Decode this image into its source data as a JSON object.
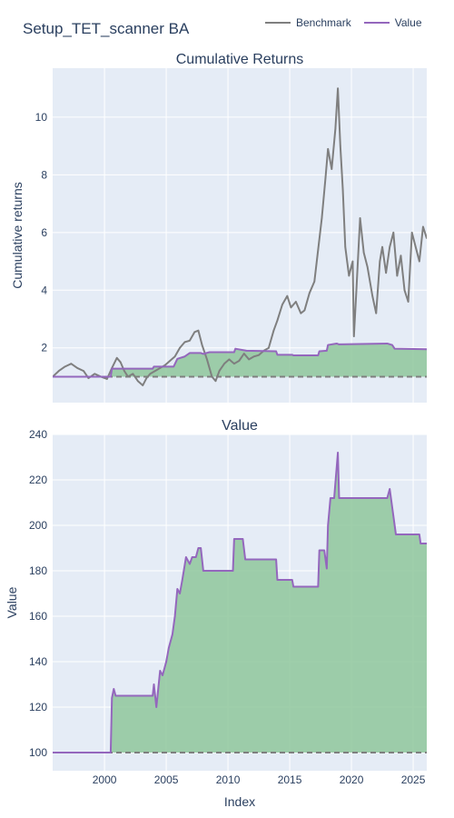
{
  "title": "Setup_TET_scanner BA",
  "colors": {
    "benchmark": "#7f7f7f",
    "value": "#9467bd",
    "fill": "#8fc79b",
    "dark_fill_overlap": "#4a7a4a",
    "baseline": "#7f7f7f",
    "plot_bg": "#e5ecf6"
  },
  "legend": [
    {
      "name": "Benchmark",
      "color": "#7f7f7f"
    },
    {
      "name": "Value",
      "color": "#9467bd"
    }
  ],
  "chart_data": [
    {
      "type": "line",
      "title": "Cumulative Returns",
      "ylabel": "Cumulative returns",
      "xlabel": "",
      "xlim": [
        1995.8,
        2026.1
      ],
      "ylim": [
        0.1,
        11.7
      ],
      "yticks": [
        2,
        4,
        6,
        8,
        10
      ],
      "xticks": [
        2000,
        2005,
        2010,
        2015,
        2020,
        2025
      ],
      "baseline": 1,
      "series": [
        {
          "name": "Benchmark",
          "x": [
            1995.8,
            1996.3,
            1996.8,
            1997.3,
            1997.8,
            1998.3,
            1998.7,
            1999.2,
            1999.7,
            2000.2,
            2000.6,
            2001.0,
            2001.3,
            2001.6,
            2001.9,
            2002.3,
            2002.7,
            2003.1,
            2003.4,
            2003.7,
            2004.1,
            2004.5,
            2004.9,
            2005.3,
            2005.7,
            2006.1,
            2006.5,
            2006.9,
            2007.3,
            2007.6,
            2007.9,
            2008.3,
            2008.7,
            2009.0,
            2009.3,
            2009.7,
            2010.1,
            2010.5,
            2010.9,
            2011.3,
            2011.7,
            2012.1,
            2012.5,
            2012.9,
            2013.3,
            2013.7,
            2014.0,
            2014.4,
            2014.8,
            2015.1,
            2015.5,
            2015.9,
            2016.2,
            2016.6,
            2017.0,
            2017.3,
            2017.6,
            2017.9,
            2018.1,
            2018.4,
            2018.7,
            2018.9,
            2019.1,
            2019.3,
            2019.5,
            2019.8,
            2020.1,
            2020.2,
            2020.4,
            2020.7,
            2021.0,
            2021.3,
            2021.7,
            2022.0,
            2022.3,
            2022.5,
            2022.8,
            2023.1,
            2023.4,
            2023.7,
            2024.0,
            2024.3,
            2024.6,
            2024.9,
            2025.2,
            2025.5,
            2025.8,
            2026.1
          ],
          "values": [
            1.0,
            1.2,
            1.35,
            1.45,
            1.3,
            1.2,
            0.95,
            1.1,
            1.0,
            0.92,
            1.3,
            1.65,
            1.5,
            1.2,
            1.0,
            1.1,
            0.85,
            0.7,
            0.95,
            1.1,
            1.2,
            1.3,
            1.4,
            1.55,
            1.7,
            2.0,
            2.2,
            2.25,
            2.55,
            2.6,
            2.1,
            1.6,
            1.0,
            0.85,
            1.2,
            1.45,
            1.6,
            1.45,
            1.55,
            1.8,
            1.6,
            1.7,
            1.75,
            1.9,
            2.0,
            2.6,
            2.95,
            3.5,
            3.8,
            3.4,
            3.6,
            3.2,
            3.3,
            3.9,
            4.3,
            5.4,
            6.5,
            7.9,
            8.9,
            8.2,
            9.6,
            11.0,
            9.0,
            7.5,
            5.5,
            4.5,
            5.0,
            2.4,
            4.0,
            6.5,
            5.3,
            4.8,
            3.8,
            3.2,
            5.0,
            5.5,
            4.6,
            5.5,
            6.0,
            4.5,
            5.2,
            4.0,
            3.6,
            6.0,
            5.5,
            5.0,
            6.2,
            5.8
          ]
        },
        {
          "name": "Value",
          "x": [
            1995.8,
            2000.5,
            2000.6,
            2003.9,
            2004.0,
            2005.6,
            2005.9,
            2006.5,
            2006.9,
            2007.8,
            2008.0,
            2008.5,
            2010.5,
            2010.6,
            2011.5,
            2013.9,
            2014.0,
            2015.2,
            2015.3,
            2017.3,
            2017.4,
            2018.0,
            2018.1,
            2018.8,
            2019.0,
            2022.9,
            2023.3,
            2023.5,
            2026.1
          ],
          "values": [
            1.0,
            1.0,
            1.28,
            1.28,
            1.35,
            1.35,
            1.62,
            1.7,
            1.82,
            1.82,
            1.79,
            1.85,
            1.85,
            1.97,
            1.9,
            1.88,
            1.76,
            1.76,
            1.74,
            1.74,
            1.88,
            1.9,
            2.1,
            2.15,
            2.12,
            2.15,
            2.1,
            1.97,
            1.95
          ]
        }
      ]
    },
    {
      "type": "area",
      "title": "Value",
      "ylabel": "Value",
      "xlabel": "Index",
      "xlim": [
        1995.8,
        2026.1
      ],
      "ylim": [
        92,
        240
      ],
      "yticks": [
        100,
        120,
        140,
        160,
        180,
        200,
        220,
        240
      ],
      "xticks": [
        2000,
        2005,
        2010,
        2015,
        2020,
        2025
      ],
      "baseline": 100,
      "series": [
        {
          "name": "Value",
          "x": [
            1995.8,
            2000.5,
            2000.6,
            2000.75,
            2000.9,
            2003.9,
            2004.0,
            2004.2,
            2004.5,
            2004.7,
            2005.0,
            2005.2,
            2005.5,
            2005.7,
            2005.9,
            2006.1,
            2006.3,
            2006.6,
            2006.9,
            2007.1,
            2007.4,
            2007.6,
            2007.8,
            2008.0,
            2008.5,
            2010.4,
            2010.5,
            2011.2,
            2011.4,
            2013.9,
            2014.0,
            2014.2,
            2015.2,
            2015.3,
            2017.3,
            2017.4,
            2017.8,
            2018.0,
            2018.1,
            2018.3,
            2018.6,
            2018.9,
            2019.0,
            2022.9,
            2023.1,
            2023.4,
            2023.6,
            2025.5,
            2025.6,
            2026.1
          ],
          "values": [
            100,
            100,
            124,
            128,
            125,
            125,
            130,
            120,
            136,
            134,
            140,
            146,
            152,
            160,
            172,
            170,
            176,
            186,
            183,
            186,
            186,
            190,
            190,
            180,
            180,
            180,
            194,
            194,
            185,
            185,
            176,
            176,
            176,
            173,
            173,
            189,
            189,
            181,
            200,
            212,
            212,
            232,
            212,
            212,
            216,
            204,
            196,
            196,
            192,
            192
          ]
        }
      ]
    }
  ],
  "x_axis_title": "Index"
}
